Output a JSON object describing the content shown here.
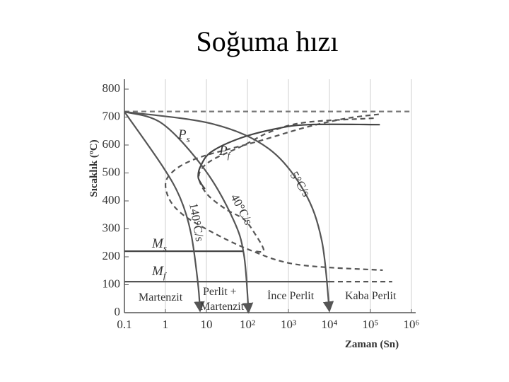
{
  "chart_data": {
    "type": "line",
    "title": "Soğuma hızı",
    "xlabel": "Zaman (Sn)",
    "ylabel": "Sıcaklık (ºC)",
    "xscale": "log",
    "xlim": [
      0.1,
      1000000
    ],
    "ylim": [
      0,
      800
    ],
    "xticks": [
      0.1,
      1,
      10,
      {
        "value": 100,
        "label": "10²"
      },
      {
        "value": 1000,
        "label": "10³"
      },
      {
        "value": 10000,
        "label": "10⁴"
      },
      {
        "value": 100000,
        "label": "10⁵"
      },
      {
        "value": 1000000,
        "label": "10⁶"
      }
    ],
    "yticks": [
      0,
      100,
      200,
      300,
      400,
      500,
      600,
      700,
      800
    ],
    "grid": "x",
    "series": [
      {
        "color": "#777777",
        "style": "dashed",
        "x": [
          0.1,
          1000000
        ],
        "values": [
          720,
          720
        ]
      },
      {
        "color": "#444444",
        "style": "solid",
        "x": [
          0.1,
          81
        ],
        "values": [
          220,
          220
        ]
      },
      {
        "color": "#555555",
        "style": "solid",
        "x": [
          0.1,
          10000
        ],
        "values": [
          111,
          111
        ]
      },
      {
        "color": "#555555",
        "style": "dashed",
        "x": [
          10000,
          340000
        ],
        "values": [
          111,
          111
        ]
      },
      {
        "color": "#555555",
        "style": "dashed",
        "x": [
          160000,
          25000,
          2600,
          180,
          5.3,
          1.2,
          1.1,
          2.2,
          10,
          120,
          1700,
          200000
        ],
        "values": [
          710,
          695,
          663,
          613,
          550,
          489,
          425,
          361,
          299,
          223,
          172,
          152
        ]
      },
      {
        "color": "#555555",
        "style": "dashed",
        "x": [
          120000,
          2600,
          370,
          76,
          14,
          7.2,
          6.8,
          11,
          30,
          82,
          150,
          250,
          150
        ],
        "values": [
          696,
          681,
          648,
          597,
          547,
          509,
          471,
          420,
          370,
          334,
          284,
          223,
          220
        ]
      },
      {
        "color": "#444444",
        "style": "solid",
        "x": [
          170000,
          3100,
          490,
          68,
          13,
          7.2,
          6.3,
          7.5,
          9.2
        ],
        "values": [
          673,
          673,
          658,
          625,
          575,
          524,
          486,
          461,
          443
        ]
      },
      {
        "color": "#555555",
        "style": "solid",
        "arrow": true,
        "x": [
          0.1,
          0.85,
          2.3,
          4.2,
          6.2,
          7.0
        ],
        "values": [
          719,
          524,
          410,
          284,
          106,
          5
        ]
      },
      {
        "color": "#555555",
        "style": "solid",
        "arrow": true,
        "x": [
          0.1,
          0.85,
          9.2,
          45,
          82,
          107
        ],
        "values": [
          719,
          676,
          511,
          334,
          208,
          0
        ]
      },
      {
        "color": "#555555",
        "style": "solid",
        "arrow": true,
        "x": [
          0.1,
          13.7,
          329,
          2400,
          6500,
          10000
        ],
        "values": [
          719,
          676,
          587,
          435,
          258,
          5
        ]
      }
    ],
    "annotations": [
      {
        "text": "P",
        "sub": "s"
      },
      {
        "text": "P",
        "sub": "f"
      },
      {
        "text": "5°C/s"
      },
      {
        "text": "40°C/s"
      },
      {
        "text": "140°C/s"
      },
      {
        "text": "M",
        "sub": "s"
      },
      {
        "text": "M",
        "sub": "f"
      },
      {
        "text": "Martenzit"
      },
      {
        "text": "Perlit +"
      },
      {
        "text": "Martenzit"
      },
      {
        "text": "İnce Perlit"
      },
      {
        "text": "Kaba Perlit"
      }
    ]
  }
}
